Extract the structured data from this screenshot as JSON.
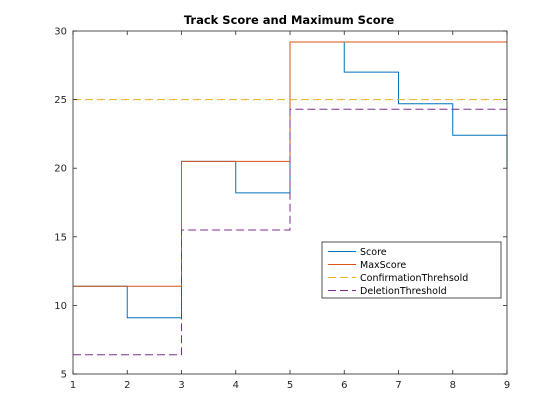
{
  "chart_data": {
    "type": "line",
    "subtype": "stairs",
    "title": "Track Score and Maximum Score",
    "xlabel": "",
    "ylabel": "",
    "xlim": [
      1,
      9
    ],
    "ylim": [
      5,
      30
    ],
    "xticks": [
      1,
      2,
      3,
      4,
      5,
      6,
      7,
      8,
      9
    ],
    "yticks": [
      5,
      10,
      15,
      20,
      25,
      30
    ],
    "grid": false,
    "legend_position": "lower-right",
    "x": [
      1,
      2,
      3,
      4,
      5,
      6,
      7,
      8,
      9
    ],
    "series": [
      {
        "name": "Score",
        "color": "#0072BD",
        "dash": "solid",
        "values": [
          11.4,
          9.1,
          20.5,
          18.2,
          29.2,
          27.0,
          24.7,
          22.4,
          20.0
        ]
      },
      {
        "name": "MaxScore",
        "color": "#D95319",
        "dash": "solid",
        "values": [
          11.4,
          11.4,
          20.5,
          20.5,
          29.2,
          29.2,
          29.2,
          29.2,
          29.2
        ]
      },
      {
        "name": "ConfirmationThrehsold",
        "color": "#EDB120",
        "dash": "dashed",
        "values": [
          25,
          25,
          25,
          25,
          25,
          25,
          25,
          25,
          25
        ]
      },
      {
        "name": "DeletionThreshold",
        "color": "#7E2F8E",
        "dash": "dashed",
        "values": [
          6.4,
          6.4,
          15.5,
          15.5,
          24.3,
          24.3,
          24.3,
          24.3,
          24.3
        ]
      }
    ]
  }
}
